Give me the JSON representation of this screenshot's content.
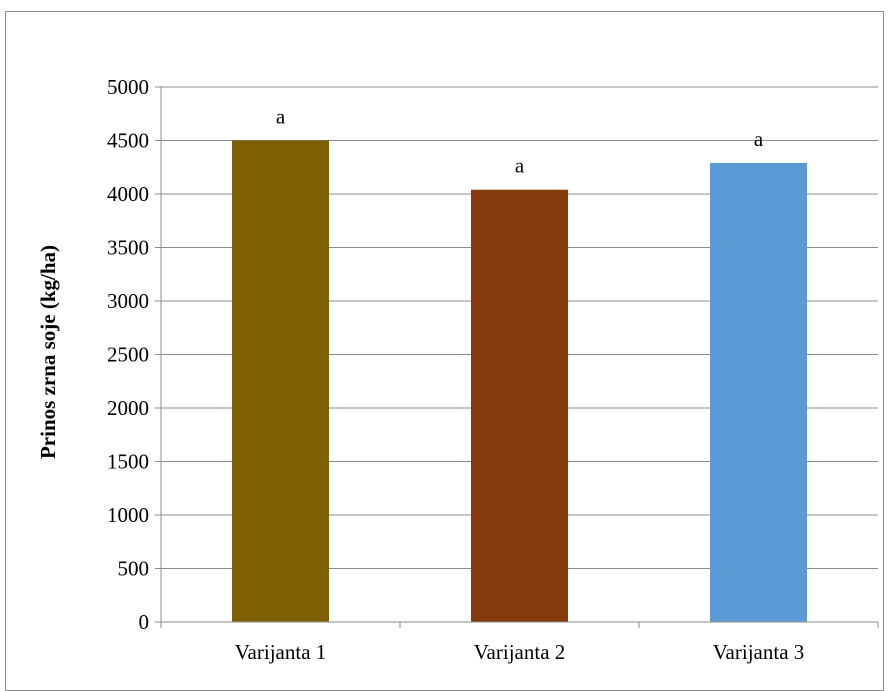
{
  "chart_data": {
    "type": "bar",
    "categories": [
      "Varijanta 1",
      "Varijanta 2",
      "Varijanta 3"
    ],
    "values": [
      4500,
      4040,
      4290
    ],
    "data_labels": [
      "a",
      "a",
      "a"
    ],
    "bar_colors": [
      "#7f6000",
      "#843c0c",
      "#5b9bd5"
    ],
    "title": "",
    "xlabel": "",
    "ylabel": "Prinos zrna soje (kg/ha)",
    "ylim": [
      0,
      5000
    ],
    "yticks": [
      0,
      500,
      1000,
      1500,
      2000,
      2500,
      3000,
      3500,
      4000,
      4500,
      5000
    ],
    "ytick_labels": [
      "0",
      "500",
      "1000",
      "1500",
      "2000",
      "2500",
      "3000",
      "3500",
      "4000",
      "4500",
      "5000"
    ],
    "grid": true,
    "legend": "none"
  }
}
